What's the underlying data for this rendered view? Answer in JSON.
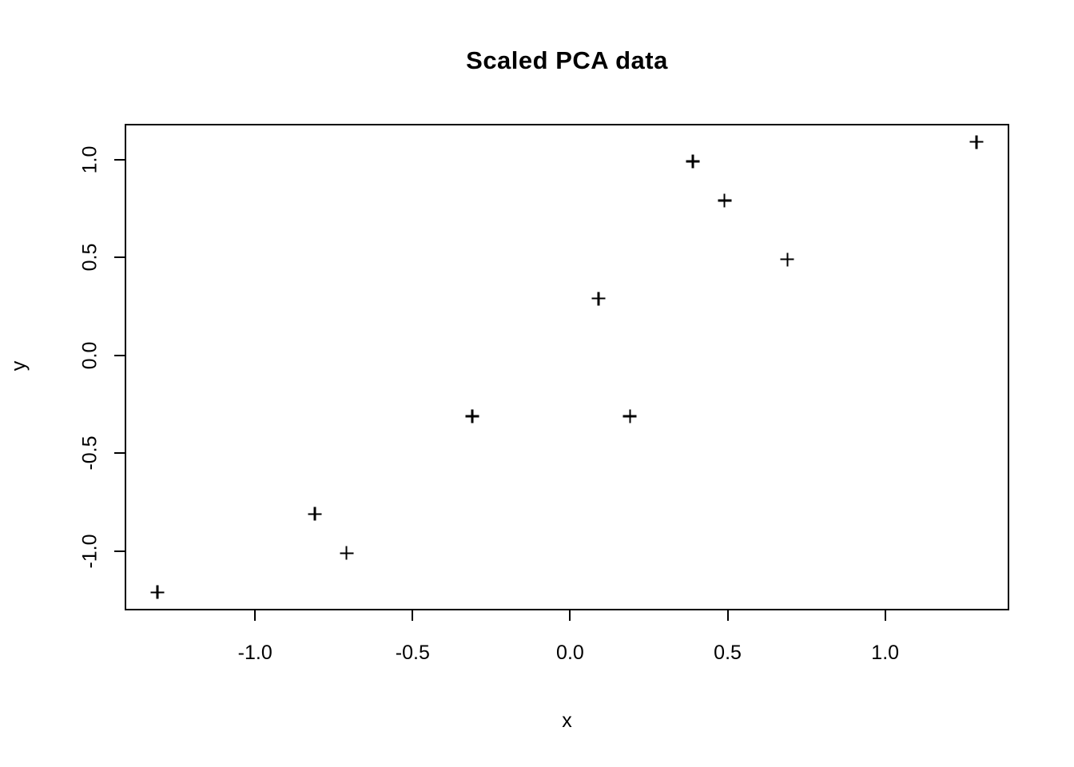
{
  "title": "Scaled PCA data",
  "xlabel": "x",
  "ylabel": "y",
  "chart_data": {
    "type": "scatter",
    "title": "Scaled PCA data",
    "xlabel": "x",
    "ylabel": "y",
    "marker": "plus",
    "marker_color": "#000000",
    "background_color": "#ffffff",
    "grid": false,
    "legend": null,
    "xlim": [
      -1.414,
      1.394
    ],
    "ylim": [
      -1.302,
      1.182
    ],
    "x_ticks": [
      -1.0,
      -0.5,
      0.0,
      0.5,
      1.0
    ],
    "y_ticks": [
      -1.0,
      -0.5,
      0.0,
      0.5,
      1.0
    ],
    "x_tick_labels": [
      "-1.0",
      "-0.5",
      "0.0",
      "0.5",
      "1.0"
    ],
    "y_tick_labels": [
      "-1.0",
      "-0.5",
      "0.0",
      "0.5",
      "1.0"
    ],
    "points": [
      {
        "x": 0.69,
        "y": 0.49
      },
      {
        "x": -1.31,
        "y": -1.21
      },
      {
        "x": 0.39,
        "y": 0.99
      },
      {
        "x": 0.09,
        "y": 0.29
      },
      {
        "x": 1.29,
        "y": 1.09
      },
      {
        "x": 0.49,
        "y": 0.79
      },
      {
        "x": 0.19,
        "y": -0.31
      },
      {
        "x": -0.81,
        "y": -0.81
      },
      {
        "x": -0.31,
        "y": -0.31
      },
      {
        "x": -0.71,
        "y": -1.01
      }
    ]
  }
}
